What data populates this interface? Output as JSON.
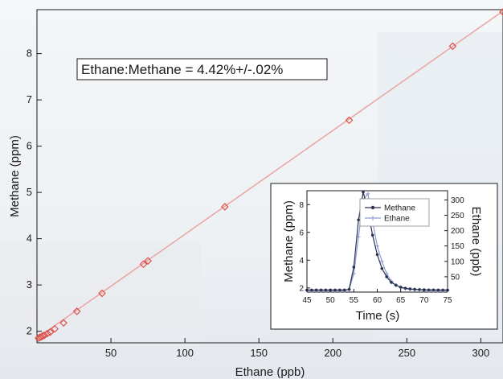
{
  "main_chart": {
    "type": "scatter",
    "xlabel": "Ethane (ppb)",
    "ylabel": "Methane (ppm)",
    "xlim": [
      0,
      315
    ],
    "ylim": [
      1.75,
      8.95
    ],
    "xticks": [
      50,
      100,
      150,
      200,
      250,
      300
    ],
    "yticks": [
      2,
      3,
      4,
      5,
      6,
      7,
      8
    ],
    "annotation": "Ethane:Methane = 4.42%+/-.02%",
    "marker_color": "#e0504a",
    "line_color": "#e8a4a0",
    "fit": {
      "x": [
        0,
        315
      ],
      "y": [
        1.85,
        8.92
      ]
    },
    "points": {
      "x": [
        1,
        2,
        3,
        4,
        5,
        7,
        9,
        12,
        18,
        27,
        44,
        72,
        75,
        127,
        211,
        281,
        315
      ],
      "y": [
        1.85,
        1.87,
        1.88,
        1.9,
        1.91,
        1.95,
        1.98,
        2.05,
        2.18,
        2.43,
        2.82,
        3.45,
        3.52,
        4.69,
        6.56,
        8.16,
        8.9
      ]
    }
  },
  "inset_chart": {
    "type": "line",
    "xlabel": "Time (s)",
    "ylabel_left": "Methane (ppm)",
    "ylabel_right": "Ethane (ppb)",
    "xlim": [
      45,
      75
    ],
    "ylim_left": [
      1.7,
      9
    ],
    "ylim_right": [
      0,
      330
    ],
    "xticks": [
      45,
      50,
      55,
      60,
      65,
      70,
      75
    ],
    "yticks_left": [
      2,
      4,
      6,
      8
    ],
    "yticks_right": [
      50,
      100,
      150,
      200,
      250,
      300
    ],
    "legend": [
      {
        "name": "Methane",
        "color": "#2a3450"
      },
      {
        "name": "Ethane",
        "color": "#8f9ad0"
      }
    ],
    "series": [
      {
        "name": "Methane",
        "axis": "left",
        "x": [
          45,
          46,
          47,
          48,
          49,
          50,
          51,
          52,
          53,
          54,
          55,
          56,
          57,
          58,
          59,
          60,
          61,
          62,
          63,
          64,
          65,
          66,
          67,
          68,
          69,
          70,
          71,
          72,
          73,
          74,
          75
        ],
        "y": [
          1.85,
          1.85,
          1.85,
          1.85,
          1.85,
          1.85,
          1.85,
          1.85,
          1.85,
          1.9,
          3.5,
          6.9,
          8.9,
          7.6,
          5.8,
          4.4,
          3.4,
          2.8,
          2.4,
          2.2,
          2.05,
          1.98,
          1.93,
          1.9,
          1.88,
          1.87,
          1.86,
          1.86,
          1.85,
          1.85,
          1.85
        ]
      },
      {
        "name": "Ethane",
        "axis": "right",
        "x": [
          45,
          46,
          47,
          48,
          49,
          50,
          51,
          52,
          53,
          54,
          55,
          56,
          57,
          58,
          59,
          60,
          61,
          62,
          63,
          64,
          65,
          66,
          67,
          68,
          69,
          70,
          71,
          72,
          73,
          74,
          75
        ],
        "y": [
          5,
          5,
          5,
          5,
          5,
          5,
          5,
          5,
          5,
          8,
          60,
          180,
          300,
          320,
          230,
          150,
          100,
          60,
          35,
          22,
          15,
          11,
          9,
          8,
          7,
          6,
          5,
          5,
          5,
          5,
          5
        ]
      }
    ]
  }
}
